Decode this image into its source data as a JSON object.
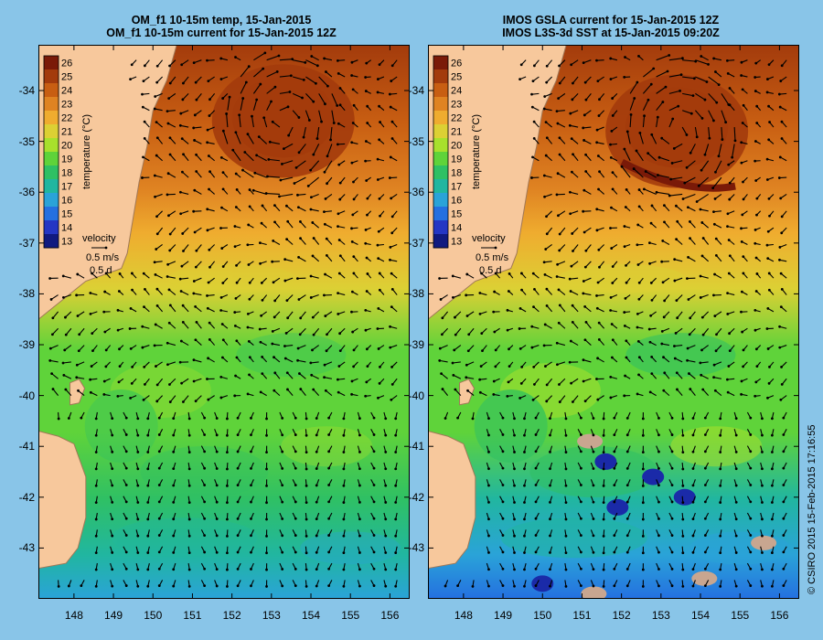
{
  "titles": {
    "left_line1": "OM_f1 10-15m temp, 15-Jan-2015",
    "left_line2": "OM_f1 10-15m current for 15-Jan-2015 12Z",
    "right_line1": "IMOS GSLA current for 15-Jan-2015 12Z",
    "right_line2": "IMOS L3S-3d SST at 15-Jan-2015 09:20Z"
  },
  "colorbar": {
    "label": "temperature (°C)",
    "ticks": [
      "26",
      "25",
      "24",
      "23",
      "22",
      "21",
      "20",
      "19",
      "18",
      "17",
      "16",
      "15",
      "14",
      "13"
    ],
    "colors": [
      "#7a1a08",
      "#a33b0c",
      "#c85e12",
      "#df8322",
      "#efac2f",
      "#dcd034",
      "#a8e02c",
      "#5fd33a",
      "#2fc064",
      "#21b6a0",
      "#2aa3d8",
      "#2470e0",
      "#2436c4",
      "#101a80"
    ]
  },
  "velocity_key": {
    "title": "velocity",
    "speed": "0.5 m/s",
    "time": "0.5 d"
  },
  "colors": {
    "background": "#89c5e8",
    "land": "#f7c89c",
    "coast": "#a07858",
    "arrow": "#000000"
  },
  "credit": "© CSIRO 2015   15-Feb-2015 17:16:55",
  "chart_data": [
    {
      "type": "heatmap",
      "title": "OM_f1 10-15m temp, 15-Jan-2015 / OM_f1 10-15m current for 15-Jan-2015 12Z",
      "xlabel": "",
      "ylabel": "",
      "x_ticks": [
        "148",
        "149",
        "150",
        "151",
        "152",
        "153",
        "154",
        "155",
        "156"
      ],
      "y_ticks": [
        "-34",
        "-35",
        "-36",
        "-37",
        "-38",
        "-39",
        "-40",
        "-41",
        "-42",
        "-43"
      ],
      "xlim": [
        147.1,
        156.5
      ],
      "ylim": [
        -44.0,
        -33.1
      ],
      "colorbar_range": [
        13,
        26
      ],
      "colorbar_unit": "°C",
      "eddy": {
        "lon": 153.3,
        "lat": -34.6
      },
      "regions": [
        {
          "lat": -34.3,
          "temp": 24.5
        },
        {
          "lat": -37.0,
          "temp": 22.0
        },
        {
          "lat": -39.5,
          "temp": 19.0
        },
        {
          "lat": -42.5,
          "temp": 17.5
        }
      ]
    },
    {
      "type": "heatmap",
      "title": "IMOS GSLA current for 15-Jan-2015 12Z / IMOS L3S-3d SST at 15-Jan-2015 09:20Z",
      "xlabel": "",
      "ylabel": "",
      "x_ticks": [
        "148",
        "149",
        "150",
        "151",
        "152",
        "153",
        "154",
        "155",
        "156"
      ],
      "y_ticks": [
        "-34",
        "-35",
        "-36",
        "-37",
        "-38",
        "-39",
        "-40",
        "-41",
        "-42",
        "-43"
      ],
      "xlim": [
        147.1,
        156.5
      ],
      "ylim": [
        -44.0,
        -33.1
      ],
      "colorbar_range": [
        13,
        26
      ],
      "colorbar_unit": "°C",
      "eddy": {
        "lon": 153.4,
        "lat": -34.8
      },
      "regions": [
        {
          "lat": -34.3,
          "temp": 24.5
        },
        {
          "lat": -37.0,
          "temp": 21.5
        },
        {
          "lat": -40.0,
          "temp": 19.5
        },
        {
          "lat": -42.8,
          "temp": 16.5
        }
      ]
    }
  ]
}
